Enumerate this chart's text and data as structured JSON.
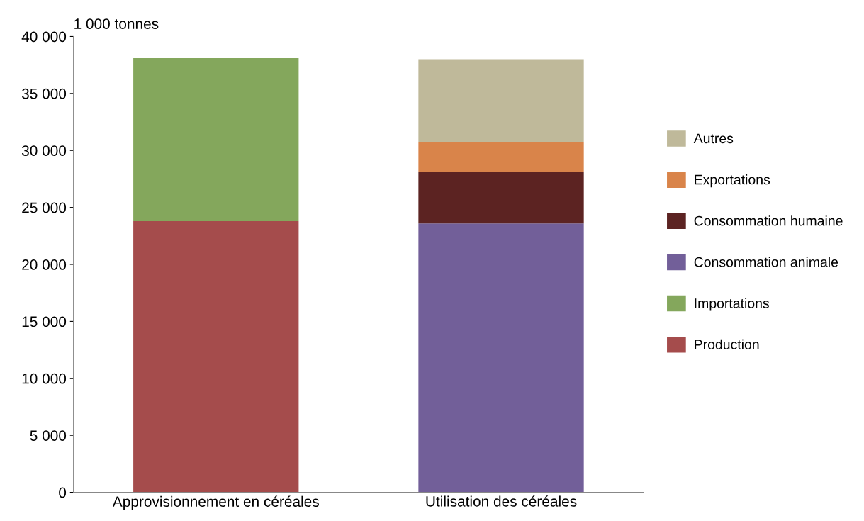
{
  "chart_data": {
    "type": "bar",
    "stacked": true,
    "ylabel": "1 000 tonnes",
    "categories": [
      "Approvisionnement en céréales",
      "Utilisation des céréales"
    ],
    "series": [
      {
        "name": "Production",
        "color": "#a54c4c",
        "values": [
          23800,
          null
        ]
      },
      {
        "name": "Importations",
        "color": "#84a75c",
        "values": [
          14300,
          null
        ]
      },
      {
        "name": "Consommation animale",
        "color": "#725f99",
        "values": [
          null,
          23600
        ]
      },
      {
        "name": "Consommation humaine",
        "color": "#5c2322",
        "values": [
          null,
          4500
        ]
      },
      {
        "name": "Exportations",
        "color": "#d9844a",
        "values": [
          null,
          2600
        ]
      },
      {
        "name": "Autres",
        "color": "#bfb99a",
        "values": [
          null,
          7300
        ]
      }
    ],
    "ylim": [
      0,
      40000
    ],
    "yticks": [
      {
        "value": 0,
        "label": "0"
      },
      {
        "value": 5000,
        "label": "5 000"
      },
      {
        "value": 10000,
        "label": "10 000"
      },
      {
        "value": 15000,
        "label": "15 000"
      },
      {
        "value": 20000,
        "label": "20 000"
      },
      {
        "value": 25000,
        "label": "25 000"
      },
      {
        "value": 30000,
        "label": "30 000"
      },
      {
        "value": 35000,
        "label": "35 000"
      },
      {
        "value": 40000,
        "label": "40 000"
      }
    ],
    "grid": false,
    "legend": "right"
  }
}
